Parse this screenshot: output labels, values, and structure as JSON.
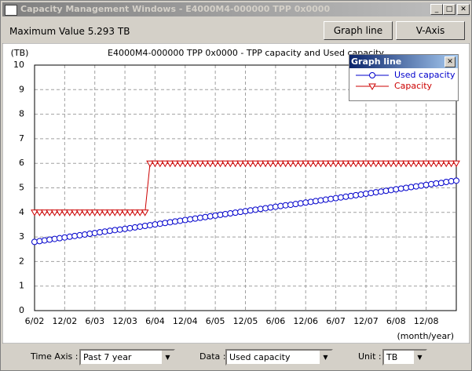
{
  "window": {
    "title": "Capacity Management Windows - E4000M4-000000 TPP 0x0000",
    "maximum_value": "Maximum Value 5.293 TB",
    "buttons": [
      "Graph line",
      "V-Axis"
    ]
  },
  "legend_panel": {
    "title": "Graph line"
  },
  "controls": [
    {
      "label": "Time Axis :",
      "value": "Past 7 year"
    },
    {
      "label": "Data :",
      "value": "Used capacity"
    },
    {
      "label": "Unit :",
      "value": "TB"
    }
  ],
  "chart_data": {
    "type": "line",
    "title": "E4000M4-000000 TPP 0x0000 - TPP capacity and Used capacity",
    "y_label": "(TB)",
    "x_label": "(month/year)",
    "categories": [
      "6/02",
      null,
      null,
      null,
      null,
      null,
      "12/02",
      null,
      null,
      null,
      null,
      null,
      "6/03",
      null,
      null,
      null,
      null,
      null,
      "12/03",
      null,
      null,
      null,
      null,
      null,
      "6/04",
      null,
      null,
      null,
      null,
      null,
      "12/04",
      null,
      null,
      null,
      null,
      null,
      "6/05",
      null,
      null,
      null,
      null,
      null,
      "12/05",
      null,
      null,
      null,
      null,
      null,
      "6/06",
      null,
      null,
      null,
      null,
      null,
      "12/06",
      null,
      null,
      null,
      null,
      null,
      "6/07",
      null,
      null,
      null,
      null,
      null,
      "12/07",
      null,
      null,
      null,
      null,
      null,
      "6/08",
      null,
      null,
      null,
      null,
      null,
      "12/08",
      null,
      null,
      null,
      null,
      null,
      null
    ],
    "series": [
      {
        "name": "Used capacity",
        "color": "#0000cc",
        "marker": "circle",
        "values": [
          2.8,
          2.83,
          2.86,
          2.89,
          2.92,
          2.95,
          2.98,
          3.01,
          3.04,
          3.07,
          3.1,
          3.13,
          3.16,
          3.19,
          3.22,
          3.25,
          3.28,
          3.3,
          3.33,
          3.36,
          3.39,
          3.42,
          3.45,
          3.48,
          3.51,
          3.54,
          3.57,
          3.6,
          3.63,
          3.66,
          3.69,
          3.72,
          3.75,
          3.78,
          3.81,
          3.84,
          3.87,
          3.9,
          3.93,
          3.96,
          3.99,
          4.02,
          4.05,
          4.08,
          4.11,
          4.14,
          4.17,
          4.2,
          4.23,
          4.26,
          4.29,
          4.31,
          4.34,
          4.37,
          4.4,
          4.43,
          4.46,
          4.49,
          4.52,
          4.55,
          4.58,
          4.61,
          4.64,
          4.67,
          4.7,
          4.73,
          4.76,
          4.79,
          4.82,
          4.85,
          4.88,
          4.91,
          4.94,
          4.97,
          5.0,
          5.03,
          5.06,
          5.09,
          5.12,
          5.15,
          5.18,
          5.2,
          5.24,
          5.27,
          5.293
        ]
      },
      {
        "name": "Capacity",
        "color": "#cc0000",
        "marker": "triangle-down",
        "values": [
          4,
          4,
          4,
          4,
          4,
          4,
          4,
          4,
          4,
          4,
          4,
          4,
          4,
          4,
          4,
          4,
          4,
          4,
          4,
          4,
          4,
          4,
          4,
          6,
          6,
          6,
          6,
          6,
          6,
          6,
          6,
          6,
          6,
          6,
          6,
          6,
          6,
          6,
          6,
          6,
          6,
          6,
          6,
          6,
          6,
          6,
          6,
          6,
          6,
          6,
          6,
          6,
          6,
          6,
          6,
          6,
          6,
          6,
          6,
          6,
          6,
          6,
          6,
          6,
          6,
          6,
          6,
          6,
          6,
          6,
          6,
          6,
          6,
          6,
          6,
          6,
          6,
          6,
          6,
          6,
          6,
          6,
          6,
          6,
          6
        ]
      }
    ],
    "ylim": [
      0,
      10
    ],
    "yticks": [
      0,
      1,
      2,
      3,
      4,
      5,
      6,
      7,
      8,
      9,
      10
    ],
    "grid": true,
    "legend": "top-right"
  }
}
